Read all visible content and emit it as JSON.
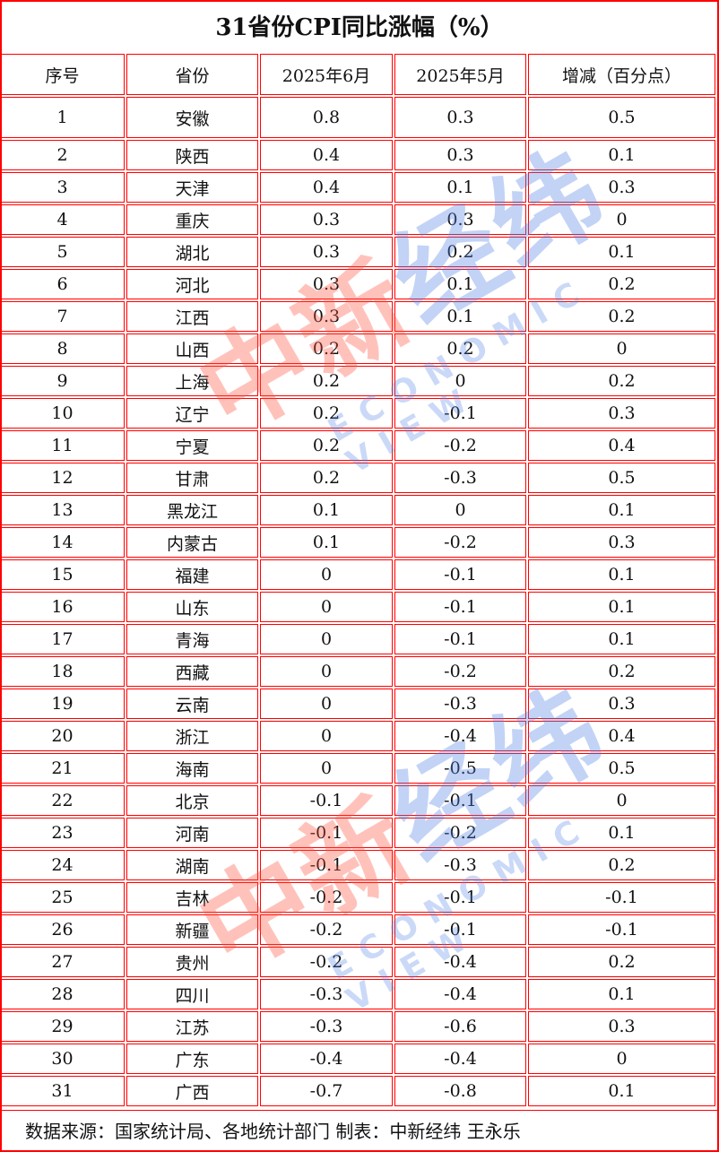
{
  "title": "31省份CPI同比涨幅（%）",
  "columns": [
    "序号",
    "省份",
    "2025年6月",
    "2025年5月",
    "增减（百分点）"
  ],
  "rows": [
    [
      "1",
      "安徽",
      "0.8",
      "0.3",
      "0.5"
    ],
    [
      "2",
      "陕西",
      "0.4",
      "0.3",
      "0.1"
    ],
    [
      "3",
      "天津",
      "0.4",
      "0.1",
      "0.3"
    ],
    [
      "4",
      "重庆",
      "0.3",
      "0.3",
      "0"
    ],
    [
      "5",
      "湖北",
      "0.3",
      "0.2",
      "0.1"
    ],
    [
      "6",
      "河北",
      "0.3",
      "0.1",
      "0.2"
    ],
    [
      "7",
      "江西",
      "0.3",
      "0.1",
      "0.2"
    ],
    [
      "8",
      "山西",
      "0.2",
      "0.2",
      "0"
    ],
    [
      "9",
      "上海",
      "0.2",
      "0",
      "0.2"
    ],
    [
      "10",
      "辽宁",
      "0.2",
      "-0.1",
      "0.3"
    ],
    [
      "11",
      "宁夏",
      "0.2",
      "-0.2",
      "0.4"
    ],
    [
      "12",
      "甘肃",
      "0.2",
      "-0.3",
      "0.5"
    ],
    [
      "13",
      "黑龙江",
      "0.1",
      "0",
      "0.1"
    ],
    [
      "14",
      "内蒙古",
      "0.1",
      "-0.2",
      "0.3"
    ],
    [
      "15",
      "福建",
      "0",
      "-0.1",
      "0.1"
    ],
    [
      "16",
      "山东",
      "0",
      "-0.1",
      "0.1"
    ],
    [
      "17",
      "青海",
      "0",
      "-0.1",
      "0.1"
    ],
    [
      "18",
      "西藏",
      "0",
      "-0.2",
      "0.2"
    ],
    [
      "19",
      "云南",
      "0",
      "-0.3",
      "0.3"
    ],
    [
      "20",
      "浙江",
      "0",
      "-0.4",
      "0.4"
    ],
    [
      "21",
      "海南",
      "0",
      "-0.5",
      "0.5"
    ],
    [
      "22",
      "北京",
      "-0.1",
      "-0.1",
      "0"
    ],
    [
      "23",
      "河南",
      "-0.1",
      "-0.2",
      "0.1"
    ],
    [
      "24",
      "湖南",
      "-0.1",
      "-0.3",
      "0.2"
    ],
    [
      "25",
      "吉林",
      "-0.2",
      "-0.1",
      "-0.1"
    ],
    [
      "26",
      "新疆",
      "-0.2",
      "-0.1",
      "-0.1"
    ],
    [
      "27",
      "贵州",
      "-0.2",
      "-0.4",
      "0.2"
    ],
    [
      "28",
      "四川",
      "-0.3",
      "-0.4",
      "0.1"
    ],
    [
      "29",
      "江苏",
      "-0.3",
      "-0.6",
      "0.3"
    ],
    [
      "30",
      "广东",
      "-0.4",
      "-0.4",
      "0"
    ],
    [
      "31",
      "广西",
      "-0.7",
      "-0.8",
      "0.1"
    ]
  ],
  "footer": "数据来源：国家统计局、各地统计部门 制表：中新经纬 王永乐",
  "watermark": {
    "cn_a": "中新",
    "cn_b": "经纬",
    "en": "ECONOMIC VIEW"
  },
  "colors": {
    "border": "#ff0000",
    "text": "#111111"
  }
}
